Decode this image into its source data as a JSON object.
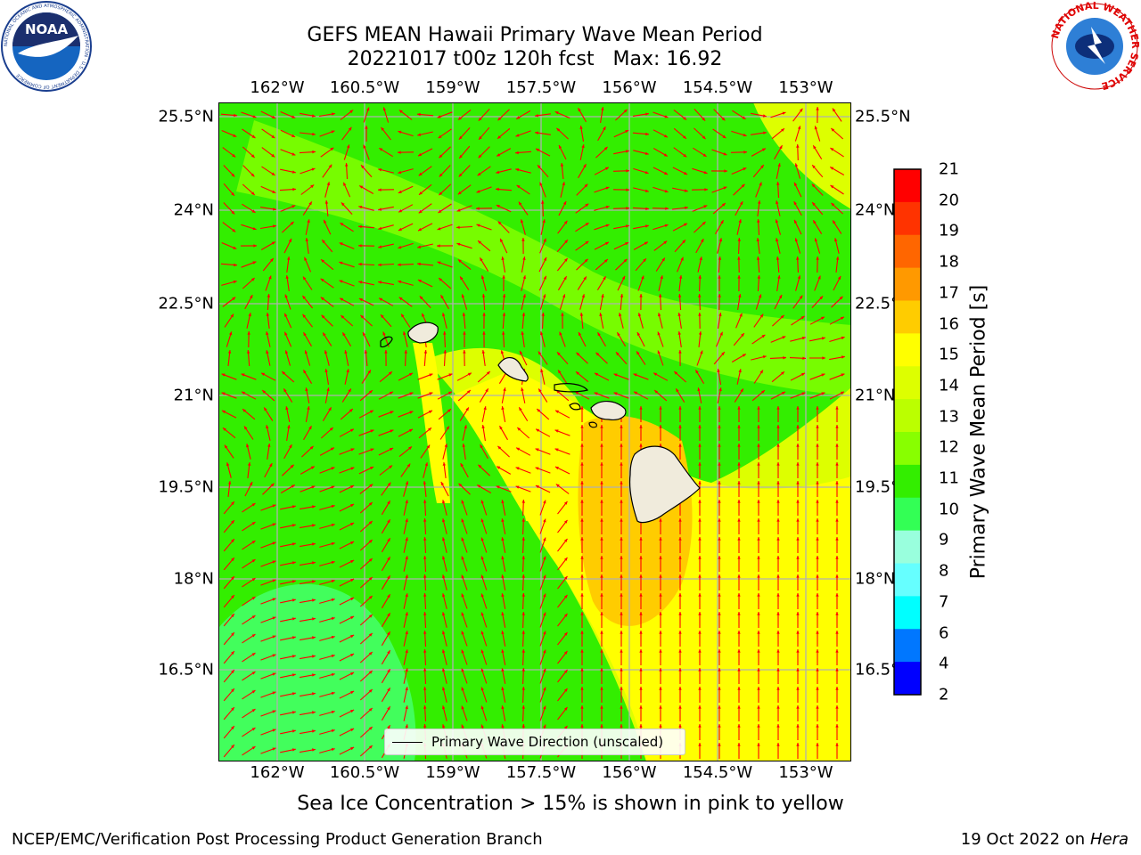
{
  "title": {
    "line1": "GEFS MEAN Hawaii Primary Wave Mean Period",
    "line2": "20221017 t00z 120h fcst   Max: 16.92"
  },
  "lon_labels": [
    "162°W",
    "160.5°W",
    "159°W",
    "157.5°W",
    "156°W",
    "154.5°W",
    "153°W"
  ],
  "lat_labels": [
    "25.5°N",
    "24°N",
    "22.5°N",
    "21°N",
    "19.5°N",
    "18°N",
    "16.5°N"
  ],
  "lat_labels_right": [
    "25.5°N",
    "24°N",
    "22.5°",
    "21°N",
    "19.5°",
    "18°N",
    "16.5°"
  ],
  "colorbar": {
    "label": "Primary Wave Mean Period [s]",
    "ticks": [
      "21",
      "20",
      "19",
      "18",
      "17",
      "16",
      "15",
      "14",
      "13",
      "12",
      "11",
      "10",
      "9",
      "8",
      "7",
      "6",
      "4",
      "2"
    ],
    "colors": [
      "#ff0000",
      "#ff3300",
      "#ff6600",
      "#ff9900",
      "#ffcc00",
      "#ffff00",
      "#ddff00",
      "#bbff00",
      "#88ff00",
      "#33ee00",
      "#33ff55",
      "#99ffdd",
      "#66ffff",
      "#00ffff",
      "#0077ff",
      "#0000ff"
    ]
  },
  "legend": {
    "label": "Primary Wave Direction (unscaled)"
  },
  "caption": "Sea Ice Concentration > 15% is shown in pink to yellow",
  "footer": {
    "left": "NCEP/EMC/Verification Post Processing Product Generation Branch",
    "right_text": "19 Oct 2022 on ",
    "right_italic": "Hera"
  },
  "logos": {
    "left": {
      "text": "NOAA",
      "ring_text": "NATIONAL OCEANIC AND ATMOSPHERIC ADMINISTRATION · U.S. DEPARTMENT OF COMMERCE"
    },
    "right": {
      "ring_text": "NATIONAL WEATHER SERVICE"
    }
  },
  "colors": {
    "arrow": "#ff0000",
    "grid": "#b0b0b0",
    "land": "#f0ebdc"
  }
}
